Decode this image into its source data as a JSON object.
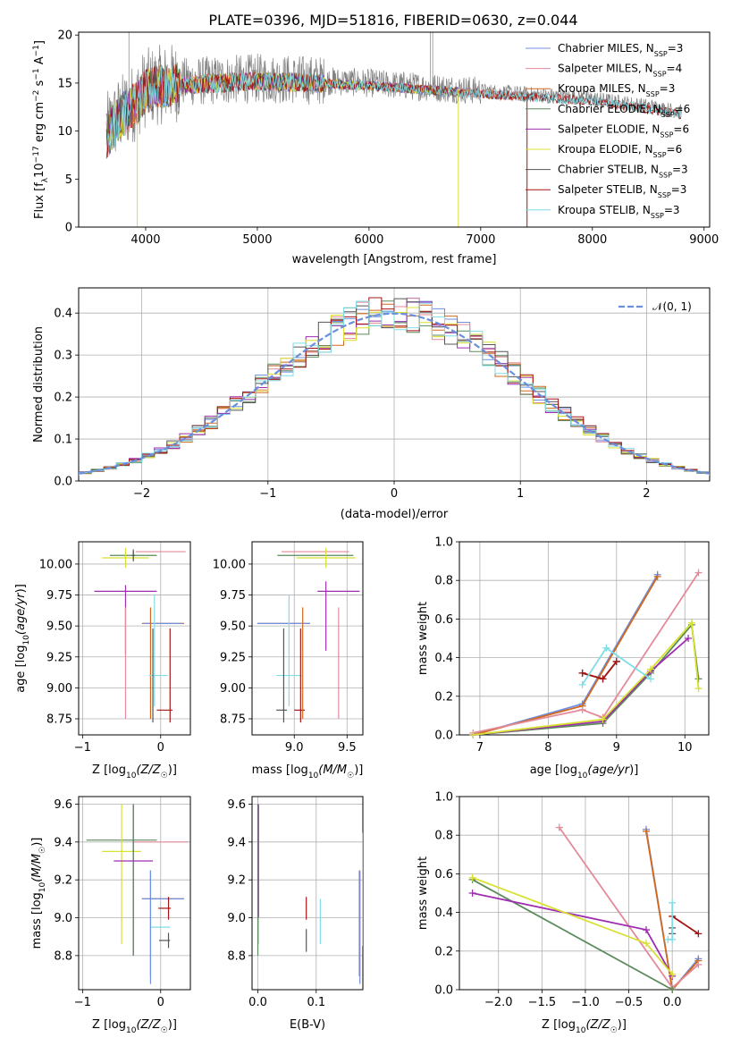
{
  "title": "PLATE=0396, MJD=51816, FIBERID=0630, z=0.044",
  "colors": {
    "Chabrier MILES": "#6f8fe0",
    "Salpeter MILES": "#e48a9a",
    "Kroupa MILES": "#d0681e",
    "Chabrier ELODIE": "#5b8a5b",
    "Salpeter ELODIE": "#9e2eb0",
    "Kroupa ELODIE": "#d8e030",
    "Chabrier STELIB": "#555555",
    "Salpeter STELIB": "#a51414",
    "Kroupa STELIB": "#7fdde6",
    "data": "#808080",
    "normal": "#6a8fdc"
  },
  "chart_data": [
    {
      "type": "line",
      "id": "spectrum",
      "xlabel": "wavelength [Angstrom, rest frame]",
      "ylabel": "Flux [f_λ 10^-17 erg cm^-2 s^-1 A^-1]",
      "xlim": [
        3400,
        9050
      ],
      "ylim": [
        0,
        20.3
      ],
      "xticks": [
        4000,
        5000,
        6000,
        7000,
        8000,
        9000
      ],
      "yticks": [
        0,
        5,
        10,
        15,
        20
      ],
      "grid": false,
      "legend_position": "top-right",
      "legend": [
        {
          "base": "Chabrier MILES, N",
          "sub": "SSP",
          "tail": "=3"
        },
        {
          "base": "Salpeter MILES, N",
          "sub": "SSP",
          "tail": "=4"
        },
        {
          "base": "Kroupa MILES, N",
          "sub": "SSP",
          "tail": "=3"
        },
        {
          "base": "Chabrier ELODIE, N",
          "sub": "SSP",
          "tail": "=6"
        },
        {
          "base": "Salpeter ELODIE, N",
          "sub": "SSP",
          "tail": "=6"
        },
        {
          "base": "Kroupa ELODIE, N",
          "sub": "SSP",
          "tail": "=6"
        },
        {
          "base": "Chabrier STELIB, N",
          "sub": "SSP",
          "tail": "=3"
        },
        {
          "base": "Salpeter STELIB, N",
          "sub": "SSP",
          "tail": "=3"
        },
        {
          "base": "Kroupa STELIB, N",
          "sub": "SSP",
          "tail": "=3"
        }
      ],
      "continuum": [
        [
          3650,
          9.8
        ],
        [
          3750,
          11.5
        ],
        [
          3900,
          13.0
        ],
        [
          4000,
          14.5
        ],
        [
          4200,
          15.0
        ],
        [
          4500,
          15.2
        ],
        [
          5000,
          15.5
        ],
        [
          5500,
          15.3
        ],
        [
          6000,
          15.0
        ],
        [
          6500,
          14.6
        ],
        [
          7000,
          14.2
        ],
        [
          7500,
          13.8
        ],
        [
          8000,
          13.4
        ],
        [
          8500,
          12.6
        ],
        [
          8800,
          12.0
        ]
      ],
      "spikes_down": [
        [
          3925,
          0
        ],
        [
          6800,
          0
        ],
        [
          7415,
          0
        ]
      ],
      "spikes_up": [
        [
          3850,
          20.3
        ],
        [
          6550,
          20.3
        ],
        [
          6570,
          20.3
        ]
      ]
    },
    {
      "type": "line",
      "id": "residual-histogram",
      "xlabel": "(data-model)/error",
      "ylabel": "Normed distribution",
      "xlim": [
        -2.5,
        2.5
      ],
      "ylim": [
        0,
        0.46
      ],
      "xticks": [
        -2,
        -1,
        0,
        1,
        2
      ],
      "yticks": [
        0.0,
        0.1,
        0.2,
        0.3,
        0.4
      ],
      "grid": true,
      "legend": "𝒩(0, 1)",
      "legend_position": "top-right",
      "bin_width": 0.1
    },
    {
      "type": "scatter",
      "id": "age-vs-Z",
      "xlabel": "Z [log10(Z/Z☉)]",
      "ylabel": "age  [log10(age/yr)]",
      "xlim": [
        -1.05,
        0.38
      ],
      "ylim": [
        8.62,
        10.18
      ],
      "xticks": [
        -1,
        0
      ],
      "yticks": [
        8.75,
        9.0,
        9.25,
        9.5,
        9.75,
        10.0
      ],
      "grid": true,
      "points": [
        {
          "c": "Salpeter MILES",
          "x": 0.0,
          "y": 10.1,
          "dx": 0.32,
          "dy": 0.0
        },
        {
          "c": "Chabrier ELODIE",
          "x": -0.35,
          "y": 10.07,
          "dx": 0.3,
          "dy": 0.05
        },
        {
          "c": "Kroupa ELODIE",
          "x": -0.45,
          "y": 10.05,
          "dx": 0.3,
          "dy": 0.08
        },
        {
          "c": "Chabrier STELIB",
          "x": -0.35,
          "y": 10.07,
          "dx": 0.02,
          "dy": 0.04
        },
        {
          "c": "Salpeter ELODIE",
          "x": -0.45,
          "y": 9.78,
          "dx": 0.4,
          "dy": 0.0
        },
        {
          "c": "Salpeter ELODIE",
          "x": -0.45,
          "y": 9.55,
          "dx": 0.0,
          "dy": 0.28
        },
        {
          "c": "Kroupa MILES",
          "x": 0.03,
          "y": 9.52,
          "dx": 0.27,
          "dy": 0.0
        },
        {
          "c": "Chabrier MILES",
          "x": 0.03,
          "y": 9.52,
          "dx": 0.25,
          "dy": 0.0
        },
        {
          "c": "Kroupa MILES",
          "x": -0.13,
          "y": 9.2,
          "dx": 0.0,
          "dy": 0.45
        },
        {
          "c": "Salpeter MILES",
          "x": -0.45,
          "y": 9.2,
          "dx": 0.0,
          "dy": 0.45
        },
        {
          "c": "Kroupa STELIB",
          "x": -0.03,
          "y": 9.1,
          "dx": 0.12,
          "dy": 0.0
        },
        {
          "c": "Kroupa STELIB",
          "x": -0.08,
          "y": 9.3,
          "dx": 0.0,
          "dy": 0.45
        },
        {
          "c": "Chabrier STELIB",
          "x": -0.1,
          "y": 9.1,
          "dx": 0.0,
          "dy": 0.38
        },
        {
          "c": "Salpeter STELIB",
          "x": 0.05,
          "y": 8.82,
          "dx": 0.1,
          "dy": 0.0
        },
        {
          "c": "Salpeter STELIB",
          "x": 0.12,
          "y": 9.1,
          "dx": 0.0,
          "dy": 0.38
        }
      ]
    },
    {
      "type": "scatter",
      "id": "age-vs-mass",
      "xlabel": "mass [log10(M/M☉)]",
      "ylabel": "",
      "xlim": [
        8.6,
        9.65
      ],
      "ylim": [
        8.62,
        10.18
      ],
      "xticks": [
        9.0,
        9.5
      ],
      "yticks": [
        8.75,
        9.0,
        9.25,
        9.5,
        9.75,
        10.0
      ],
      "grid": true,
      "points": [
        {
          "c": "Salpeter MILES",
          "x": 9.2,
          "y": 10.1,
          "dx": 0.32,
          "dy": 0.0
        },
        {
          "c": "Chabrier ELODIE",
          "x": 9.2,
          "y": 10.07,
          "dx": 0.36,
          "dy": 0.0
        },
        {
          "c": "Kroupa ELODIE",
          "x": 9.3,
          "y": 10.05,
          "dx": 0.28,
          "dy": 0.08
        },
        {
          "c": "Salpeter ELODIE",
          "x": 9.42,
          "y": 9.78,
          "dx": 0.2,
          "dy": 0.0
        },
        {
          "c": "Salpeter ELODIE",
          "x": 9.3,
          "y": 9.58,
          "dx": 0.0,
          "dy": 0.28
        },
        {
          "c": "Kroupa MILES",
          "x": 8.9,
          "y": 9.52,
          "dx": 0.25,
          "dy": 0.0
        },
        {
          "c": "Chabrier MILES",
          "x": 8.9,
          "y": 9.52,
          "dx": 0.25,
          "dy": 0.0
        },
        {
          "c": "Salpeter MILES",
          "x": 9.42,
          "y": 9.2,
          "dx": 0.0,
          "dy": 0.45
        },
        {
          "c": "Kroupa STELIB",
          "x": 8.95,
          "y": 9.1,
          "dx": 0.12,
          "dy": 0.0
        },
        {
          "c": "Kroupa STELIB",
          "x": 8.95,
          "y": 9.3,
          "dx": 0.0,
          "dy": 0.45
        },
        {
          "c": "Chabrier STELIB",
          "x": 8.9,
          "y": 9.1,
          "dx": 0.0,
          "dy": 0.38
        },
        {
          "c": "Chabrier STELIB",
          "x": 8.88,
          "y": 8.82,
          "dx": 0.05,
          "dy": 0.0
        },
        {
          "c": "Salpeter STELIB",
          "x": 9.05,
          "y": 8.82,
          "dx": 0.05,
          "dy": 0.0
        },
        {
          "c": "Salpeter STELIB",
          "x": 9.06,
          "y": 9.1,
          "dx": 0.0,
          "dy": 0.38
        },
        {
          "c": "Kroupa MILES",
          "x": 9.08,
          "y": 9.2,
          "dx": 0.0,
          "dy": 0.45
        }
      ]
    },
    {
      "type": "line",
      "id": "weight-vs-age",
      "xlabel": "age  [log10(age/yr)]",
      "ylabel": "mass weight",
      "xlim": [
        6.7,
        10.35
      ],
      "ylim": [
        0,
        1.0
      ],
      "xticks": [
        7,
        8,
        9,
        10
      ],
      "yticks": [
        0.0,
        0.2,
        0.4,
        0.6,
        0.8,
        1.0
      ],
      "grid": true,
      "series": [
        {
          "c": "Chabrier MILES",
          "x": [
            6.9,
            8.5,
            9.6
          ],
          "y": [
            0.0,
            0.16,
            0.83
          ]
        },
        {
          "c": "Kroupa MILES",
          "x": [
            6.9,
            8.5,
            9.6
          ],
          "y": [
            0.0,
            0.15,
            0.82
          ]
        },
        {
          "c": "Salpeter MILES",
          "x": [
            6.9,
            8.5,
            8.8,
            10.2
          ],
          "y": [
            0.01,
            0.13,
            0.09,
            0.84
          ]
        },
        {
          "c": "Chabrier ELODIE",
          "x": [
            6.9,
            8.8,
            9.5,
            10.1,
            10.2
          ],
          "y": [
            0.0,
            0.06,
            0.32,
            0.57,
            0.29
          ]
        },
        {
          "c": "Salpeter ELODIE",
          "x": [
            6.9,
            8.8,
            9.5,
            10.05
          ],
          "y": [
            0.0,
            0.07,
            0.33,
            0.5
          ]
        },
        {
          "c": "Kroupa ELODIE",
          "x": [
            6.9,
            8.8,
            9.5,
            10.1,
            10.2
          ],
          "y": [
            0.0,
            0.08,
            0.34,
            0.58,
            0.24
          ]
        },
        {
          "c": "Chabrier STELIB",
          "x": [
            8.5,
            8.8,
            9.0
          ],
          "y": [
            0.32,
            0.29,
            0.38
          ]
        },
        {
          "c": "Salpeter STELIB",
          "x": [
            8.5,
            8.8,
            9.0
          ],
          "y": [
            0.32,
            0.29,
            0.38
          ]
        },
        {
          "c": "Kroupa STELIB",
          "x": [
            8.5,
            8.85,
            9.5
          ],
          "y": [
            0.26,
            0.45,
            0.29
          ]
        }
      ]
    },
    {
      "type": "scatter",
      "id": "mass-vs-Z",
      "xlabel": "Z [log10(Z/Z☉)]",
      "ylabel": "mass [log10(M/M☉)]",
      "xlim": [
        -1.05,
        0.38
      ],
      "ylim": [
        8.62,
        9.64
      ],
      "xticks": [
        -1,
        0
      ],
      "yticks": [
        8.8,
        9.0,
        9.2,
        9.4,
        9.6
      ],
      "grid": true,
      "points": [
        {
          "c": "Salpeter MILES",
          "x": 0.0,
          "y": 9.4,
          "dx": 0.35,
          "dy": 0.0
        },
        {
          "c": "Chabrier ELODIE",
          "x": -0.5,
          "y": 9.41,
          "dx": 0.45,
          "dy": 0.0
        },
        {
          "c": "Kroupa ELODIE",
          "x": -0.5,
          "y": 9.23,
          "dx": 0.0,
          "dy": 0.37
        },
        {
          "c": "Kroupa ELODIE",
          "x": -0.5,
          "y": 9.35,
          "dx": 0.25,
          "dy": 0.0
        },
        {
          "c": "Chabrier STELIB",
          "x": -0.35,
          "y": 9.2,
          "dx": 0.0,
          "dy": 0.4
        },
        {
          "c": "Chabrier ELODIE",
          "x": -0.35,
          "y": 9.2,
          "dx": 0.0,
          "dy": 0.4
        },
        {
          "c": "Salpeter ELODIE",
          "x": -0.35,
          "y": 9.3,
          "dx": 0.25,
          "dy": 0.0
        },
        {
          "c": "Kroupa MILES",
          "x": 0.03,
          "y": 9.1,
          "dx": 0.27,
          "dy": 0.0
        },
        {
          "c": "Chabrier MILES",
          "x": 0.03,
          "y": 9.1,
          "dx": 0.27,
          "dy": 0.0
        },
        {
          "c": "Kroupa MILES",
          "x": -0.13,
          "y": 8.97,
          "dx": 0.0,
          "dy": 0.28
        },
        {
          "c": "Chabrier MILES",
          "x": -0.13,
          "y": 8.95,
          "dx": 0.0,
          "dy": 0.3
        },
        {
          "c": "Salpeter STELIB",
          "x": 0.05,
          "y": 9.05,
          "dx": 0.08,
          "dy": 0.0
        },
        {
          "c": "Salpeter STELIB",
          "x": 0.1,
          "y": 9.05,
          "dx": 0.0,
          "dy": 0.06
        },
        {
          "c": "Kroupa STELIB",
          "x": 0.0,
          "y": 8.95,
          "dx": 0.12,
          "dy": 0.0
        },
        {
          "c": "Chabrier STELIB",
          "x": 0.05,
          "y": 8.88,
          "dx": 0.07,
          "dy": 0.0
        },
        {
          "c": "Chabrier STELIB",
          "x": 0.1,
          "y": 8.88,
          "dx": 0.0,
          "dy": 0.04
        }
      ]
    },
    {
      "type": "scatter",
      "id": "mass-vs-ebv",
      "xlabel": "E(B-V)",
      "ylabel": "",
      "xlim": [
        -0.01,
        0.18
      ],
      "ylim": [
        8.62,
        9.64
      ],
      "xticks": [
        0.0,
        0.1
      ],
      "yticks": [
        8.8,
        9.0,
        9.2,
        9.4,
        9.6
      ],
      "grid": true,
      "points": [
        {
          "c": "Kroupa ELODIE",
          "x": 0.001,
          "y": 9.23,
          "dx": 0.0,
          "dy": 0.37
        },
        {
          "c": "Chabrier ELODIE",
          "x": 0.0,
          "y": 9.2,
          "dx": 0.0,
          "dy": 0.4
        },
        {
          "c": "Salpeter ELODIE",
          "x": 0.001,
          "y": 9.3,
          "dx": 0.0,
          "dy": 0.3
        },
        {
          "c": "Salpeter STELIB",
          "x": 0.083,
          "y": 9.05,
          "dx": 0.0,
          "dy": 0.06
        },
        {
          "c": "Chabrier STELIB",
          "x": 0.083,
          "y": 8.88,
          "dx": 0.0,
          "dy": 0.06
        },
        {
          "c": "Kroupa STELIB",
          "x": 0.107,
          "y": 8.98,
          "dx": 0.0,
          "dy": 0.12
        },
        {
          "c": "Kroupa MILES",
          "x": 0.174,
          "y": 8.97,
          "dx": 0.0,
          "dy": 0.28
        },
        {
          "c": "Chabrier MILES",
          "x": 0.175,
          "y": 8.95,
          "dx": 0.0,
          "dy": 0.3
        },
        {
          "c": "Salpeter MILES",
          "x": 0.18,
          "y": 9.15,
          "dx": 0.0,
          "dy": 0.3
        }
      ]
    },
    {
      "type": "line",
      "id": "weight-vs-Z",
      "xlabel": "Z [log10(Z/Z☉)]",
      "ylabel": "mass weight",
      "xlim": [
        -2.45,
        0.42
      ],
      "ylim": [
        0,
        1.0
      ],
      "xticks": [
        -2.0,
        -1.5,
        -1.0,
        -0.5,
        0.0
      ],
      "yticks": [
        0.0,
        0.2,
        0.4,
        0.6,
        0.8,
        1.0
      ],
      "grid": true,
      "series": [
        {
          "c": "Chabrier MILES",
          "x": [
            -0.3,
            0.0,
            0.3
          ],
          "y": [
            0.83,
            0.0,
            0.16
          ]
        },
        {
          "c": "Kroupa MILES",
          "x": [
            -0.3,
            0.0,
            0.3
          ],
          "y": [
            0.82,
            0.0,
            0.15
          ]
        },
        {
          "c": "Salpeter MILES",
          "x": [
            -1.3,
            0.0,
            0.3
          ],
          "y": [
            0.84,
            0.01,
            0.13
          ]
        },
        {
          "c": "Chabrier ELODIE",
          "x": [
            -2.3,
            0.0
          ],
          "y": [
            0.57,
            0.0
          ]
        },
        {
          "c": "Salpeter ELODIE",
          "x": [
            -2.3,
            -0.3,
            0.0
          ],
          "y": [
            0.5,
            0.31,
            0.07
          ]
        },
        {
          "c": "Kroupa ELODIE",
          "x": [
            -2.3,
            -0.3,
            0.0
          ],
          "y": [
            0.58,
            0.24,
            0.08
          ]
        },
        {
          "c": "Chabrier STELIB",
          "x": [
            0.0,
            0.0
          ],
          "y": [
            0.32,
            0.29
          ]
        },
        {
          "c": "Salpeter STELIB",
          "x": [
            0.0,
            0.3
          ],
          "y": [
            0.38,
            0.29
          ]
        },
        {
          "c": "Kroupa STELIB",
          "x": [
            -0.05,
            0.0,
            0.0
          ],
          "y": [
            0.26,
            0.26,
            0.45
          ]
        }
      ]
    }
  ]
}
